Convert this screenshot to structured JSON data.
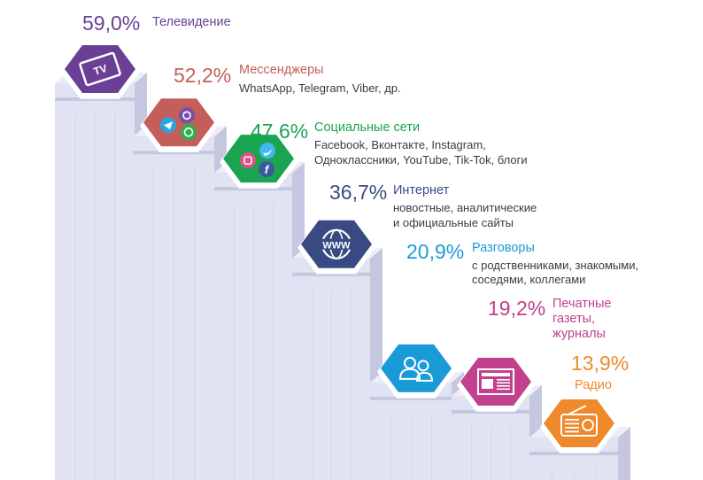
{
  "chart_data": {
    "type": "bar",
    "categories": [
      "Телевидение",
      "Мессенджеры",
      "Социальные сети",
      "Интернет",
      "Разговоры",
      "Печатные газеты, журналы",
      "Радио"
    ],
    "values": [
      59.0,
      52.2,
      47.6,
      36.7,
      20.9,
      19.2,
      13.9
    ],
    "value_labels": [
      "59,0%",
      "52,2%",
      "47,6%",
      "36,7%",
      "20,9%",
      "19,2%",
      "13,9%"
    ],
    "series": [
      {
        "values": [
          59.0,
          52.2,
          47.6,
          36.7,
          20.9,
          19.2,
          13.9
        ]
      }
    ],
    "items": [
      {
        "name": "Телевидение",
        "pct": "59,0%",
        "desc": [],
        "color": "#6a3f95",
        "icon": "tv-icon"
      },
      {
        "name": "Мессенджеры",
        "pct": "52,2%",
        "desc": [
          "WhatsApp, Telegram, Viber, др."
        ],
        "color": "#c45e5b",
        "icon": "messenger-icons"
      },
      {
        "name": "Социальные сети",
        "pct": "47,6%",
        "desc": [
          "Facebook, Вконтакте, Instagram,",
          "Одноклассники, YouTube, Tik-Tok, блоги"
        ],
        "color": "#1aa452",
        "icon": "social-network-icons"
      },
      {
        "name": "Интернет",
        "pct": "36,7%",
        "desc": [
          "новостные, аналитические",
          "и официальные сайты"
        ],
        "color": "#394a82",
        "icon": "www-globe-icon"
      },
      {
        "name": "Разговоры",
        "pct": "20,9%",
        "desc": [
          "с родственниками, знакомыми,",
          "соседями, коллегами"
        ],
        "color": "#1a9bd7",
        "icon": "people-icon"
      },
      {
        "name_lines": [
          "Печатные",
          "газеты,",
          "журналы"
        ],
        "pct": "19,2%",
        "desc": [],
        "color": "#c2408e",
        "icon": "newspaper-icon"
      },
      {
        "name": "Радио",
        "pct": "13,9%",
        "desc": [],
        "color": "#ee8a2b",
        "icon": "radio-icon"
      }
    ],
    "colors": {
      "bar_front": "#e2e3f2",
      "bar_side": "#c5c7e0",
      "bar_shadow": "#a2a6cd"
    }
  }
}
